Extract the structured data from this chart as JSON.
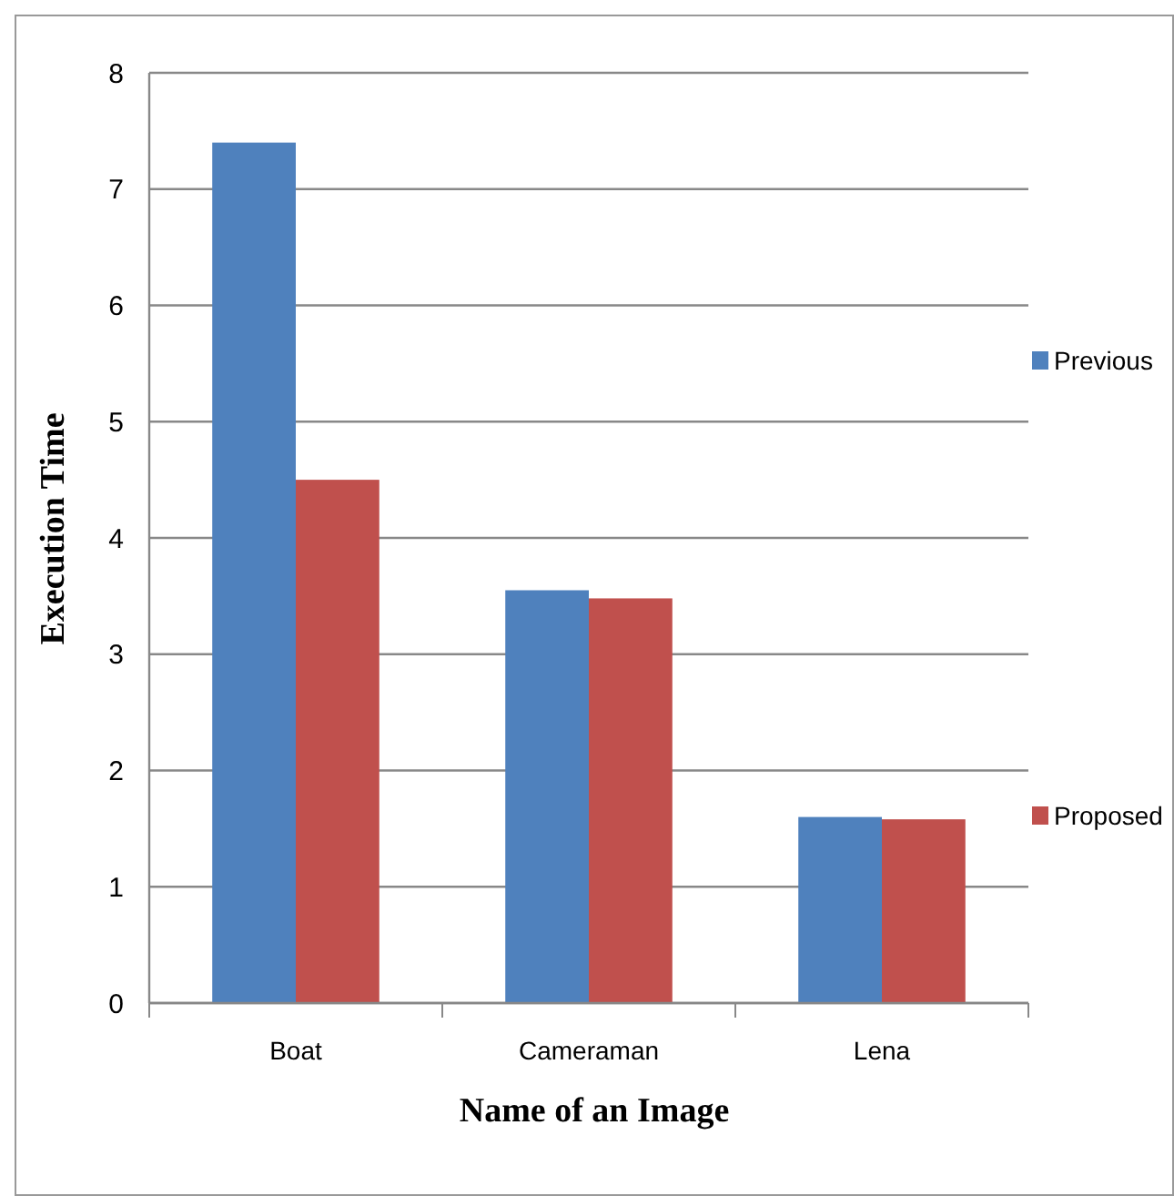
{
  "chart_data": {
    "type": "bar",
    "xlabel": "Name of an Image",
    "ylabel": "Execution Time",
    "categories": [
      "Boat",
      "Cameraman",
      "Lena"
    ],
    "series": [
      {
        "name": "Previous",
        "color": "#4f81bd",
        "values": [
          7.4,
          3.55,
          1.6
        ]
      },
      {
        "name": "Proposed",
        "color": "#c0504d",
        "values": [
          4.5,
          3.48,
          1.58
        ]
      }
    ],
    "ylim": [
      0,
      8
    ],
    "yticks": [
      0,
      1,
      2,
      3,
      4,
      5,
      6,
      7,
      8
    ],
    "grid": "y",
    "legend": "right"
  }
}
